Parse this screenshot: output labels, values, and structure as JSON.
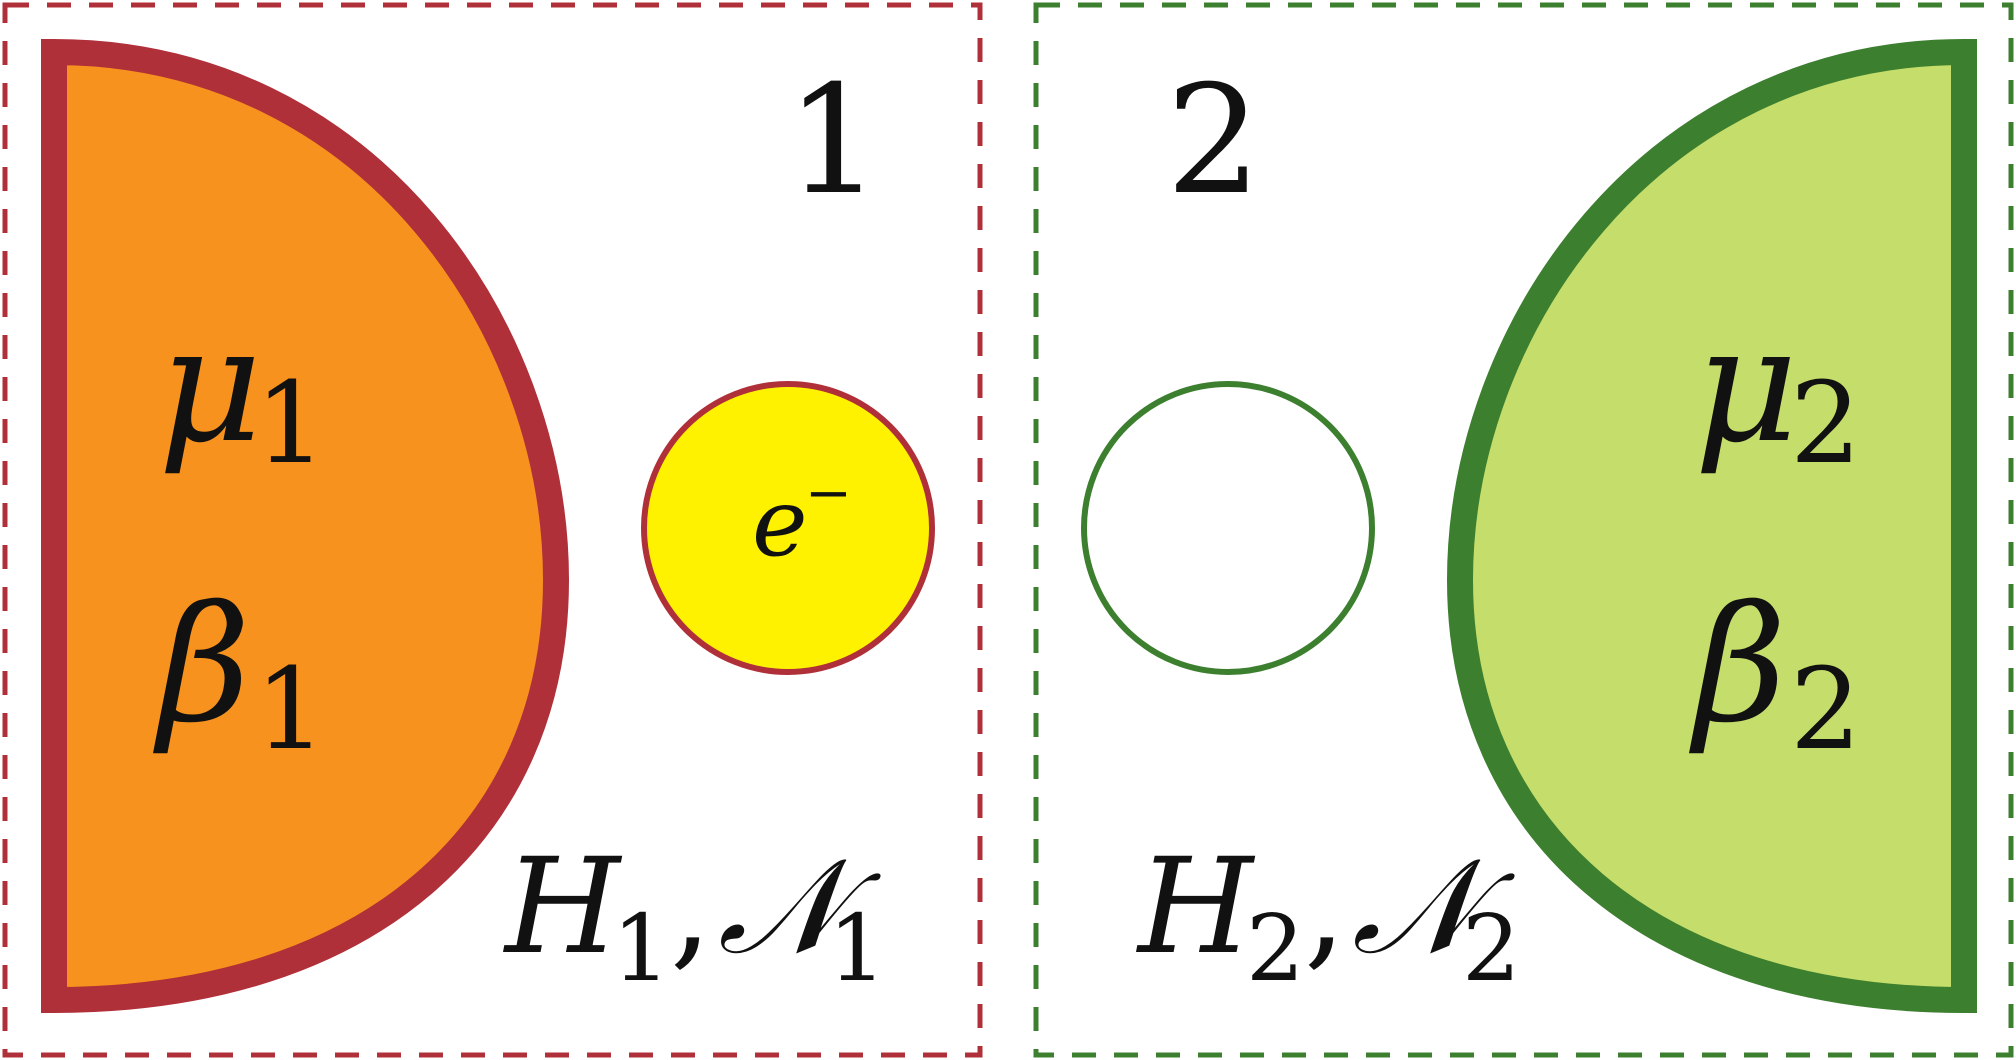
{
  "colors": {
    "left_border": "#b0303a",
    "left_fill": "#f7921e",
    "right_border": "#3c7f2f",
    "right_fill": "#c5dd6a",
    "electron_fill": "#fff200",
    "electron_stroke": "#b0303a",
    "empty_dot_stroke": "#3c7f2f",
    "text": "#111111"
  },
  "left": {
    "site_number": "1",
    "mu_symbol": "μ",
    "mu_subscript": "1",
    "beta_symbol": "β",
    "beta_subscript": "1",
    "H_symbol": "H",
    "H_subscript": "1",
    "N_symbol": "𝒩",
    "N_subscript": "1",
    "comma": ","
  },
  "right": {
    "site_number": "2",
    "mu_symbol": "μ",
    "mu_subscript": "2",
    "beta_symbol": "β",
    "beta_subscript": "2",
    "H_symbol": "H",
    "H_subscript": "2",
    "N_symbol": "𝒩",
    "N_subscript": "2",
    "comma": ","
  },
  "electron": {
    "symbol": "e",
    "charge": "−"
  }
}
